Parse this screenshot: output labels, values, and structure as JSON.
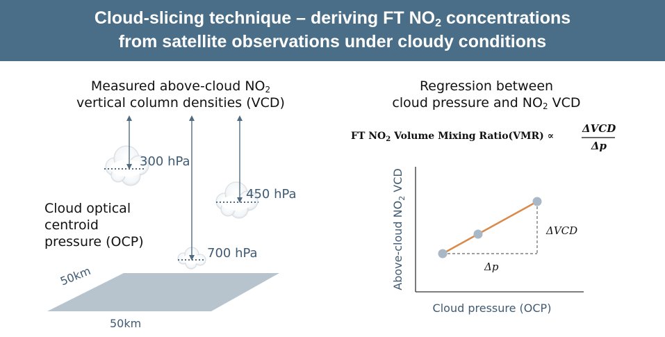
{
  "header": {
    "title_line1_pre": "Cloud-slicing technique – deriving FT NO",
    "title_line1_sub": "2",
    "title_line1_post": " concentrations",
    "title_line2": "from satellite observations under cloudy conditions"
  },
  "left": {
    "measured_line1_pre": "Measured above-cloud NO",
    "measured_line1_sub": "2",
    "measured_line2": "vertical column densities (VCD)",
    "ocp_line1": "Cloud optical",
    "ocp_line2": "centroid",
    "ocp_line3": "pressure (OCP)",
    "pressures": [
      "300 hPa",
      "450 hPa",
      "700 hPa"
    ],
    "km_side": "50km",
    "km_bottom": "50km"
  },
  "right": {
    "regression_line1": "Regression between",
    "regression_line2_pre": "cloud pressure and NO",
    "regression_line2_sub": "2",
    "regression_line2_post": " VCD",
    "formula_pre": "FT NO",
    "formula_sub": "2",
    "formula_post": " Volume Mixing Ratio(VMR) ∝",
    "formula_num": "ΔVCD",
    "formula_den": "Δp",
    "y_axis_label_pre": "Above-cloud NO",
    "y_axis_label_sub": "2",
    "y_axis_label_post": " VCD",
    "x_axis_label": "Cloud pressure (OCP)",
    "delta_vcd": "ΔVCD",
    "delta_p": "Δp"
  },
  "colors": {
    "header_bg": "#4a6e87",
    "arrow": "#4f6b82",
    "line": "#d98a4a",
    "points": "#a9b8c6",
    "ground": "#b7c4ce"
  }
}
